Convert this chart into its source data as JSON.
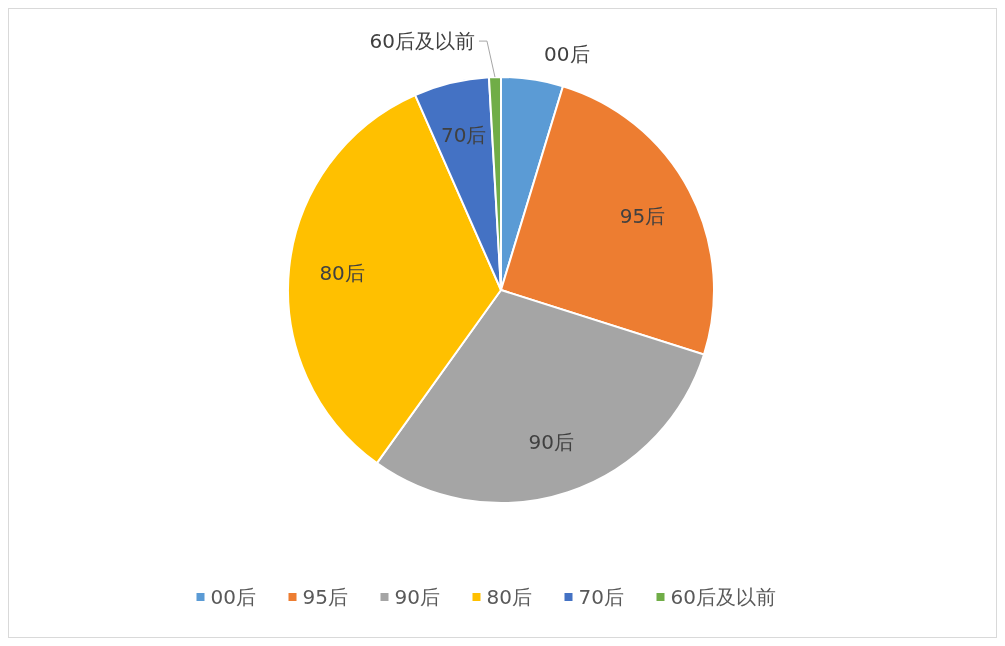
{
  "chart_data": {
    "type": "pie",
    "categories": [
      "00后",
      "95后",
      "90后",
      "80后",
      "70后",
      "60后及以前"
    ],
    "values": [
      4.7,
      25.2,
      30,
      33.5,
      5.7,
      0.9
    ],
    "colors": [
      "#5b9bd5",
      "#ed7d31",
      "#a5a5a5",
      "#ffc000",
      "#4472c4",
      "#70ad47"
    ],
    "legend": "bottom"
  }
}
